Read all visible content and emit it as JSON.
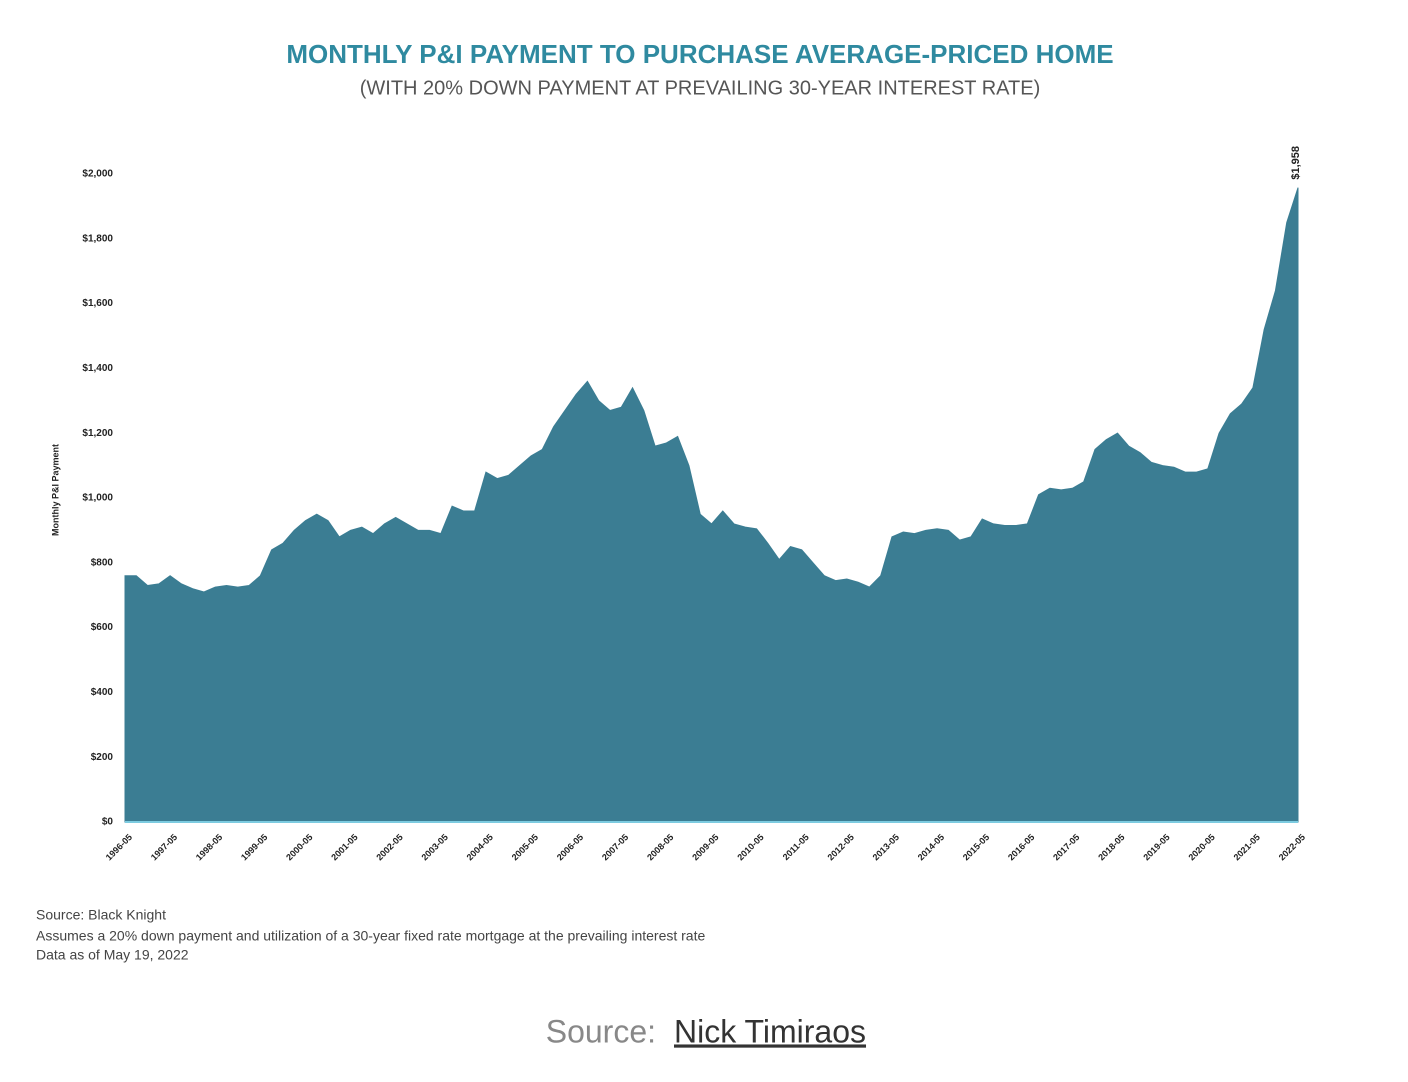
{
  "chart_data": {
    "type": "area",
    "title": "MONTHLY P&I PAYMENT TO PURCHASE AVERAGE-PRICED HOME",
    "subtitle": "(WITH 20% DOWN PAYMENT AT PREVAILING 30-YEAR INTEREST RATE)",
    "y_label": "Monthly P&I Payment",
    "color": "#3b7d93",
    "grid": false,
    "categories": [
      "1996-05",
      null,
      null,
      null,
      "1997-05",
      null,
      null,
      null,
      "1998-05",
      null,
      null,
      null,
      "1999-05",
      null,
      null,
      null,
      "2000-05",
      null,
      null,
      null,
      "2001-05",
      null,
      null,
      null,
      "2002-05",
      null,
      null,
      null,
      "2003-05",
      null,
      null,
      null,
      "2004-05",
      null,
      null,
      null,
      "2005-05",
      null,
      null,
      null,
      "2006-05",
      null,
      null,
      null,
      "2007-05",
      null,
      null,
      null,
      "2008-05",
      null,
      null,
      null,
      "2009-05",
      null,
      null,
      null,
      "2010-05",
      null,
      null,
      null,
      "2011-05",
      null,
      null,
      null,
      "2012-05",
      null,
      null,
      null,
      "2013-05",
      null,
      null,
      null,
      "2014-05",
      null,
      null,
      null,
      "2015-05",
      null,
      null,
      null,
      "2016-05",
      null,
      null,
      null,
      "2017-05",
      null,
      null,
      null,
      "2018-05",
      null,
      null,
      null,
      "2019-05",
      null,
      null,
      null,
      "2020-05",
      null,
      null,
      null,
      "2021-05",
      null,
      null,
      null,
      "2022-05"
    ],
    "values": [
      760,
      760,
      730,
      735,
      760,
      735,
      720,
      710,
      725,
      730,
      725,
      730,
      760,
      840,
      860,
      900,
      930,
      950,
      930,
      880,
      900,
      910,
      890,
      920,
      940,
      920,
      900,
      900,
      890,
      975,
      960,
      960,
      1080,
      1060,
      1070,
      1100,
      1130,
      1150,
      1220,
      1270,
      1320,
      1360,
      1300,
      1270,
      1280,
      1340,
      1270,
      1160,
      1170,
      1190,
      1100,
      950,
      920,
      960,
      920,
      910,
      905,
      860,
      810,
      850,
      840,
      800,
      760,
      745,
      750,
      740,
      725,
      760,
      880,
      895,
      890,
      900,
      905,
      900,
      870,
      880,
      935,
      920,
      915,
      915,
      920,
      1010,
      1030,
      1025,
      1030,
      1050,
      1150,
      1180,
      1200,
      1160,
      1140,
      1110,
      1100,
      1095,
      1080,
      1080,
      1090,
      1200,
      1260,
      1290,
      1340,
      1520,
      1640,
      1850,
      1958
    ],
    "value_labels": [
      null,
      null,
      null,
      null,
      null,
      null,
      null,
      null,
      null,
      null,
      null,
      null,
      null,
      null,
      null,
      null,
      null,
      null,
      null,
      null,
      null,
      null,
      null,
      null,
      null,
      null,
      null,
      null,
      null,
      null,
      null,
      null,
      null,
      null,
      null,
      null,
      null,
      null,
      null,
      null,
      null,
      null,
      null,
      null,
      null,
      null,
      null,
      null,
      null,
      null,
      null,
      null,
      null,
      null,
      null,
      null,
      null,
      null,
      null,
      null,
      null,
      null,
      null,
      null,
      null,
      null,
      null,
      null,
      null,
      null,
      null,
      null,
      null,
      null,
      null,
      null,
      null,
      null,
      null,
      null,
      null,
      null,
      null,
      null,
      null,
      null,
      null,
      null,
      null,
      null,
      null,
      null,
      null,
      null,
      null,
      null,
      null,
      null,
      null,
      null,
      null,
      null,
      null,
      null,
      "$1,958"
    ],
    "ylim": [
      0,
      2000
    ],
    "yticks": [
      {
        "value": 0,
        "label": "$0"
      },
      {
        "value": 200,
        "label": "$200"
      },
      {
        "value": 400,
        "label": "$400"
      },
      {
        "value": 600,
        "label": "$600"
      },
      {
        "value": 800,
        "label": "$800"
      },
      {
        "value": 1000,
        "label": "$1,000"
      },
      {
        "value": 1200,
        "label": "$1,200"
      },
      {
        "value": 1400,
        "label": "$1,400"
      },
      {
        "value": 1600,
        "label": "$1,600"
      },
      {
        "value": 1800,
        "label": "$1,800"
      },
      {
        "value": 2000,
        "label": "$2,000"
      }
    ],
    "notes": [
      "Source: Black Knight",
      "Assumes a 20% down payment and utilization of a 30-year fixed rate mortgage at the prevailing interest rate",
      "Data as of May 19, 2022"
    ],
    "credit": {
      "prefix": "Source:",
      "link": "Nick Timiraos"
    }
  }
}
